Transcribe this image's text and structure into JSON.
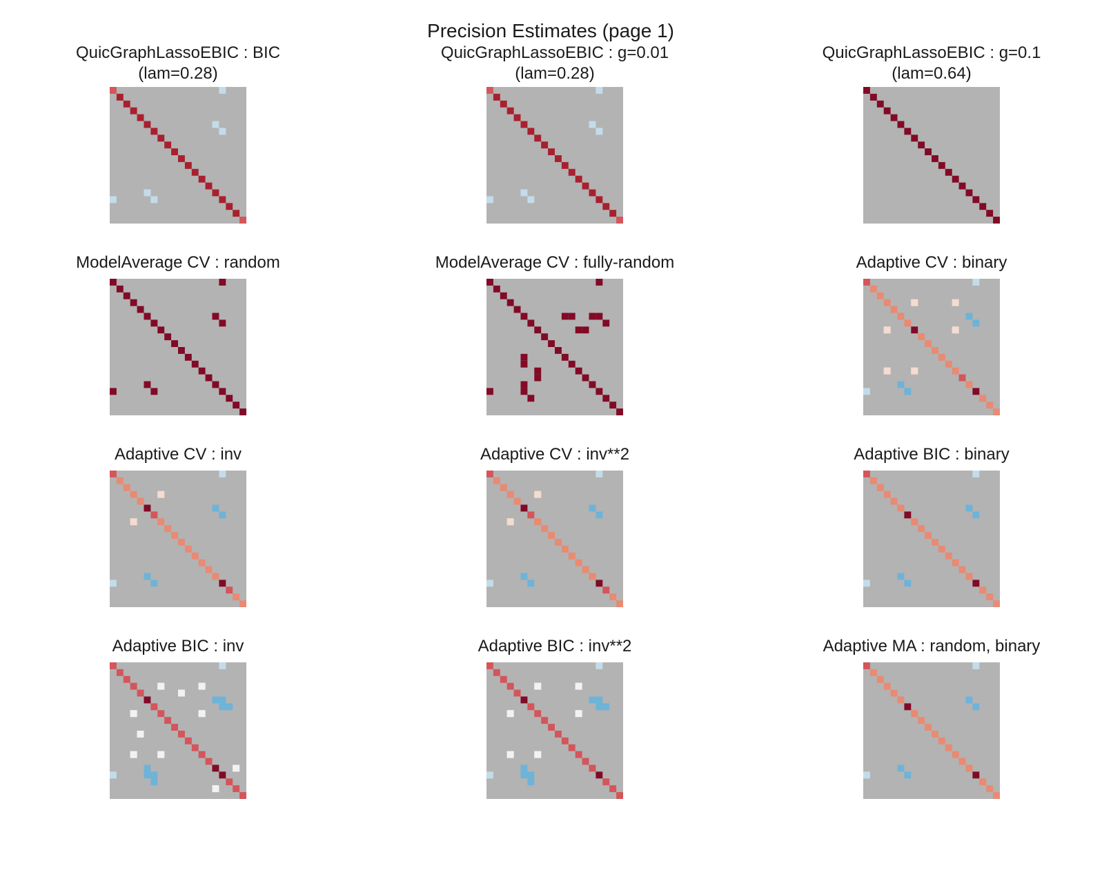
{
  "figure": {
    "suptitle": "Precision Estimates (page 1)",
    "background": "#ffffff"
  },
  "palette": {
    "zero": "#b3b3b3",
    "diag_strong": "#820a26",
    "diag_mid": "#a8202e",
    "diag_red": "#d4555a",
    "diag_salmon": "#e98a72",
    "pos_light": "#f4dcd0",
    "off_white": "#f2f2f2",
    "neg_light": "#c3dcea",
    "neg_mid": "#6eb3d8"
  },
  "chart_data": [
    {
      "type": "heatmap",
      "title_lines": [
        "QuicGraphLassoEBIC : BIC",
        "(lam=0.28)"
      ],
      "size": 20,
      "diagonal": [
        "diag_red",
        "diag_mid",
        "diag_mid",
        "diag_mid",
        "diag_mid",
        "diag_mid",
        "diag_mid",
        "diag_mid",
        "diag_mid",
        "diag_mid",
        "diag_mid",
        "diag_mid",
        "diag_mid",
        "diag_mid",
        "diag_mid",
        "diag_mid",
        "diag_mid",
        "diag_mid",
        "diag_mid",
        "diag_red"
      ],
      "offdiag": [
        [
          0,
          16,
          "neg_light"
        ],
        [
          5,
          15,
          "neg_light"
        ],
        [
          6,
          16,
          "neg_light"
        ]
      ]
    },
    {
      "type": "heatmap",
      "title_lines": [
        "QuicGraphLassoEBIC : g=0.01",
        "(lam=0.28)"
      ],
      "size": 20,
      "diagonal": [
        "diag_red",
        "diag_mid",
        "diag_mid",
        "diag_mid",
        "diag_mid",
        "diag_mid",
        "diag_mid",
        "diag_mid",
        "diag_mid",
        "diag_mid",
        "diag_mid",
        "diag_mid",
        "diag_mid",
        "diag_mid",
        "diag_mid",
        "diag_mid",
        "diag_mid",
        "diag_mid",
        "diag_mid",
        "diag_red"
      ],
      "offdiag": [
        [
          0,
          16,
          "neg_light"
        ],
        [
          5,
          15,
          "neg_light"
        ],
        [
          6,
          16,
          "neg_light"
        ]
      ]
    },
    {
      "type": "heatmap",
      "title_lines": [
        "QuicGraphLassoEBIC : g=0.1",
        "(lam=0.64)"
      ],
      "size": 20,
      "diagonal": [
        "diag_strong",
        "diag_strong",
        "diag_strong",
        "diag_strong",
        "diag_strong",
        "diag_strong",
        "diag_strong",
        "diag_strong",
        "diag_strong",
        "diag_strong",
        "diag_strong",
        "diag_strong",
        "diag_strong",
        "diag_strong",
        "diag_strong",
        "diag_strong",
        "diag_strong",
        "diag_strong",
        "diag_strong",
        "diag_strong"
      ],
      "offdiag": []
    },
    {
      "type": "heatmap",
      "title_lines": [
        "ModelAverage CV : random"
      ],
      "size": 20,
      "diagonal": [
        "diag_strong",
        "diag_strong",
        "diag_strong",
        "diag_strong",
        "diag_strong",
        "diag_strong",
        "diag_strong",
        "diag_strong",
        "diag_strong",
        "diag_strong",
        "diag_strong",
        "diag_strong",
        "diag_strong",
        "diag_strong",
        "diag_strong",
        "diag_strong",
        "diag_strong",
        "diag_strong",
        "diag_strong",
        "diag_strong"
      ],
      "offdiag": [
        [
          0,
          16,
          "diag_strong"
        ],
        [
          5,
          15,
          "diag_strong"
        ],
        [
          6,
          16,
          "diag_strong"
        ]
      ]
    },
    {
      "type": "heatmap",
      "title_lines": [
        "ModelAverage CV : fully-random"
      ],
      "size": 20,
      "diagonal": [
        "diag_strong",
        "diag_strong",
        "diag_strong",
        "diag_strong",
        "diag_strong",
        "diag_strong",
        "diag_strong",
        "diag_strong",
        "diag_strong",
        "diag_strong",
        "diag_strong",
        "diag_strong",
        "diag_strong",
        "diag_strong",
        "diag_strong",
        "diag_strong",
        "diag_strong",
        "diag_strong",
        "diag_strong",
        "diag_strong"
      ],
      "offdiag": [
        [
          0,
          16,
          "diag_strong"
        ],
        [
          5,
          11,
          "diag_strong"
        ],
        [
          5,
          15,
          "diag_strong"
        ],
        [
          7,
          13,
          "diag_strong"
        ],
        [
          12,
          5,
          "diag_strong"
        ],
        [
          14,
          7,
          "diag_strong"
        ],
        [
          16,
          5,
          "diag_strong"
        ],
        [
          17,
          6,
          "diag_strong"
        ]
      ]
    },
    {
      "type": "heatmap",
      "title_lines": [
        "Adaptive CV : binary"
      ],
      "size": 20,
      "diagonal": [
        "diag_red",
        "diag_salmon",
        "diag_salmon",
        "diag_salmon",
        "diag_salmon",
        "diag_salmon",
        "diag_salmon",
        "diag_strong",
        "diag_salmon",
        "diag_salmon",
        "diag_salmon",
        "diag_salmon",
        "diag_salmon",
        "diag_salmon",
        "diag_red",
        "diag_salmon",
        "diag_strong",
        "diag_salmon",
        "diag_salmon",
        "diag_salmon"
      ],
      "offdiag": [
        [
          0,
          16,
          "neg_light"
        ],
        [
          3,
          7,
          "pos_light"
        ],
        [
          3,
          13,
          "pos_light"
        ],
        [
          5,
          15,
          "neg_mid"
        ],
        [
          6,
          16,
          "neg_mid"
        ],
        [
          7,
          3,
          "pos_light"
        ],
        [
          7,
          13,
          "pos_light"
        ],
        [
          13,
          3,
          "pos_light"
        ],
        [
          13,
          7,
          "pos_light"
        ]
      ]
    },
    {
      "type": "heatmap",
      "title_lines": [
        "Adaptive CV : inv"
      ],
      "size": 20,
      "diagonal": [
        "diag_red",
        "diag_salmon",
        "diag_salmon",
        "diag_salmon",
        "diag_salmon",
        "diag_strong",
        "diag_red",
        "diag_salmon",
        "diag_salmon",
        "diag_salmon",
        "diag_salmon",
        "diag_salmon",
        "diag_salmon",
        "diag_salmon",
        "diag_salmon",
        "diag_salmon",
        "diag_strong",
        "diag_red",
        "diag_salmon",
        "diag_salmon"
      ],
      "offdiag": [
        [
          0,
          16,
          "neg_light"
        ],
        [
          3,
          7,
          "pos_light"
        ],
        [
          5,
          15,
          "neg_mid"
        ],
        [
          6,
          16,
          "neg_mid"
        ],
        [
          7,
          3,
          "pos_light"
        ]
      ]
    },
    {
      "type": "heatmap",
      "title_lines": [
        "Adaptive CV : inv**2"
      ],
      "size": 20,
      "diagonal": [
        "diag_red",
        "diag_salmon",
        "diag_salmon",
        "diag_salmon",
        "diag_salmon",
        "diag_strong",
        "diag_red",
        "diag_salmon",
        "diag_salmon",
        "diag_salmon",
        "diag_salmon",
        "diag_salmon",
        "diag_salmon",
        "diag_salmon",
        "diag_salmon",
        "diag_salmon",
        "diag_strong",
        "diag_red",
        "diag_salmon",
        "diag_salmon"
      ],
      "offdiag": [
        [
          0,
          16,
          "neg_light"
        ],
        [
          3,
          7,
          "pos_light"
        ],
        [
          5,
          15,
          "neg_mid"
        ],
        [
          6,
          16,
          "neg_mid"
        ],
        [
          7,
          3,
          "pos_light"
        ]
      ]
    },
    {
      "type": "heatmap",
      "title_lines": [
        "Adaptive BIC : binary"
      ],
      "size": 20,
      "diagonal": [
        "diag_red",
        "diag_salmon",
        "diag_salmon",
        "diag_salmon",
        "diag_salmon",
        "diag_salmon",
        "diag_strong",
        "diag_salmon",
        "diag_salmon",
        "diag_salmon",
        "diag_salmon",
        "diag_salmon",
        "diag_salmon",
        "diag_salmon",
        "diag_salmon",
        "diag_salmon",
        "diag_strong",
        "diag_salmon",
        "diag_salmon",
        "diag_salmon"
      ],
      "offdiag": [
        [
          0,
          16,
          "neg_light"
        ],
        [
          5,
          15,
          "neg_mid"
        ],
        [
          6,
          16,
          "neg_mid"
        ]
      ]
    },
    {
      "type": "heatmap",
      "title_lines": [
        "Adaptive BIC : inv"
      ],
      "size": 20,
      "diagonal": [
        "diag_red",
        "diag_red",
        "diag_red",
        "diag_red",
        "diag_red",
        "diag_strong",
        "diag_red",
        "diag_red",
        "diag_red",
        "diag_red",
        "diag_red",
        "diag_red",
        "diag_red",
        "diag_red",
        "diag_red",
        "diag_strong",
        "diag_strong",
        "diag_red",
        "diag_red",
        "diag_red"
      ],
      "offdiag": [
        [
          0,
          16,
          "neg_light"
        ],
        [
          3,
          7,
          "off_white"
        ],
        [
          3,
          13,
          "off_white"
        ],
        [
          4,
          10,
          "off_white"
        ],
        [
          5,
          15,
          "neg_mid"
        ],
        [
          6,
          16,
          "neg_mid"
        ],
        [
          7,
          3,
          "off_white"
        ],
        [
          7,
          13,
          "off_white"
        ],
        [
          10,
          4,
          "off_white"
        ],
        [
          13,
          3,
          "off_white"
        ],
        [
          13,
          7,
          "off_white"
        ],
        [
          15,
          18,
          "off_white"
        ],
        [
          16,
          5,
          "neg_mid"
        ],
        [
          17,
          6,
          "neg_mid"
        ],
        [
          18,
          15,
          "off_white"
        ]
      ]
    },
    {
      "type": "heatmap",
      "title_lines": [
        "Adaptive BIC : inv**2"
      ],
      "size": 20,
      "diagonal": [
        "diag_red",
        "diag_red",
        "diag_red",
        "diag_red",
        "diag_red",
        "diag_strong",
        "diag_red",
        "diag_red",
        "diag_red",
        "diag_red",
        "diag_red",
        "diag_red",
        "diag_red",
        "diag_red",
        "diag_red",
        "diag_red",
        "diag_strong",
        "diag_red",
        "diag_red",
        "diag_red"
      ],
      "offdiag": [
        [
          0,
          16,
          "neg_light"
        ],
        [
          3,
          7,
          "off_white"
        ],
        [
          3,
          13,
          "off_white"
        ],
        [
          5,
          15,
          "neg_mid"
        ],
        [
          6,
          16,
          "neg_mid"
        ],
        [
          7,
          3,
          "off_white"
        ],
        [
          7,
          13,
          "off_white"
        ],
        [
          13,
          3,
          "off_white"
        ],
        [
          13,
          7,
          "off_white"
        ],
        [
          16,
          5,
          "neg_mid"
        ],
        [
          17,
          6,
          "neg_mid"
        ]
      ]
    },
    {
      "type": "heatmap",
      "title_lines": [
        "Adaptive MA : random, binary"
      ],
      "size": 20,
      "diagonal": [
        "diag_red",
        "diag_salmon",
        "diag_salmon",
        "diag_salmon",
        "diag_salmon",
        "diag_salmon",
        "diag_strong",
        "diag_salmon",
        "diag_salmon",
        "diag_salmon",
        "diag_salmon",
        "diag_salmon",
        "diag_salmon",
        "diag_salmon",
        "diag_salmon",
        "diag_salmon",
        "diag_strong",
        "diag_salmon",
        "diag_salmon",
        "diag_salmon"
      ],
      "offdiag": [
        [
          0,
          16,
          "neg_light"
        ],
        [
          5,
          15,
          "neg_mid"
        ],
        [
          6,
          16,
          "neg_mid"
        ]
      ]
    }
  ]
}
